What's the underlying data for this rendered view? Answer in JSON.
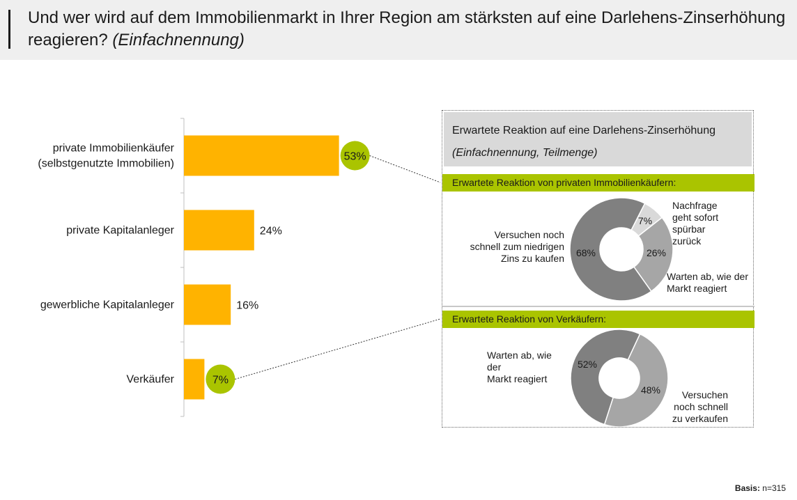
{
  "title": {
    "main": "Und wer wird auf dem Immobilienmarkt in Ihrer Region am stärksten auf eine Darlehens-Zinserhöhung reagieren?",
    "sub": "(Einfachnennung)"
  },
  "colors": {
    "bar": "#ffb300",
    "highlight": "#aac400",
    "donut_dark": "#808080",
    "donut_mid": "#a6a6a6",
    "donut_light": "#d9d9d9"
  },
  "chart_data": [
    {
      "type": "bar",
      "orientation": "horizontal",
      "categories": [
        "private Immobilienkäufer\n(selbstgenutzte Immobilien)",
        "private Kapitalanleger",
        "gewerbliche Kapitalanleger",
        "Verkäufer"
      ],
      "values": [
        53,
        24,
        16,
        7
      ],
      "value_labels": [
        "53%",
        "24%",
        "16%",
        "7%"
      ],
      "highlighted": [
        true,
        false,
        false,
        true
      ],
      "xlim": [
        0,
        100
      ]
    },
    {
      "type": "pie",
      "title": "Erwartete Reaktion von privaten Immobilienkäufern:",
      "slices": [
        {
          "label": "Nachfrage geht sofort spürbar zurück",
          "value": 7,
          "value_label": "7%"
        },
        {
          "label": "Warten ab, wie der Markt reagiert",
          "value": 26,
          "value_label": "26%"
        },
        {
          "label": "Versuchen noch schnell zum niedrigen Zins zu kaufen",
          "value": 68,
          "value_label": "68%"
        }
      ]
    },
    {
      "type": "pie",
      "title": "Erwartete Reaktion von Verkäufern:",
      "slices": [
        {
          "label": "Versuchen noch schnell zu verkaufen",
          "value": 48,
          "value_label": "48%"
        },
        {
          "label": "Warten ab, wie der Markt reagiert",
          "value": 52,
          "value_label": "52%"
        }
      ]
    }
  ],
  "panel": {
    "title": "Erwartete Reaktion auf eine Darlehens-Zinserhöhung",
    "subtitle": "(Einfachnennung, Teilmenge)",
    "section1_title": "Erwartete Reaktion von privaten Immobilienkäufern:",
    "section1_labels": {
      "left": "Versuchen noch\nschnell zum niedrigen\nZins zu kaufen",
      "top_right": "Nachfrage\ngeht sofort\nspürbar zurück",
      "bottom_right": "Warten ab, wie der\nMarkt reagiert"
    },
    "section2_title": "Erwartete Reaktion von Verkäufern:",
    "section2_labels": {
      "left": "Warten ab, wie\nder\nMarkt reagiert",
      "right": "Versuchen\nnoch schnell\nzu verkaufen"
    }
  },
  "footer": {
    "basis_label": "Basis:",
    "basis_value": "n=315"
  }
}
